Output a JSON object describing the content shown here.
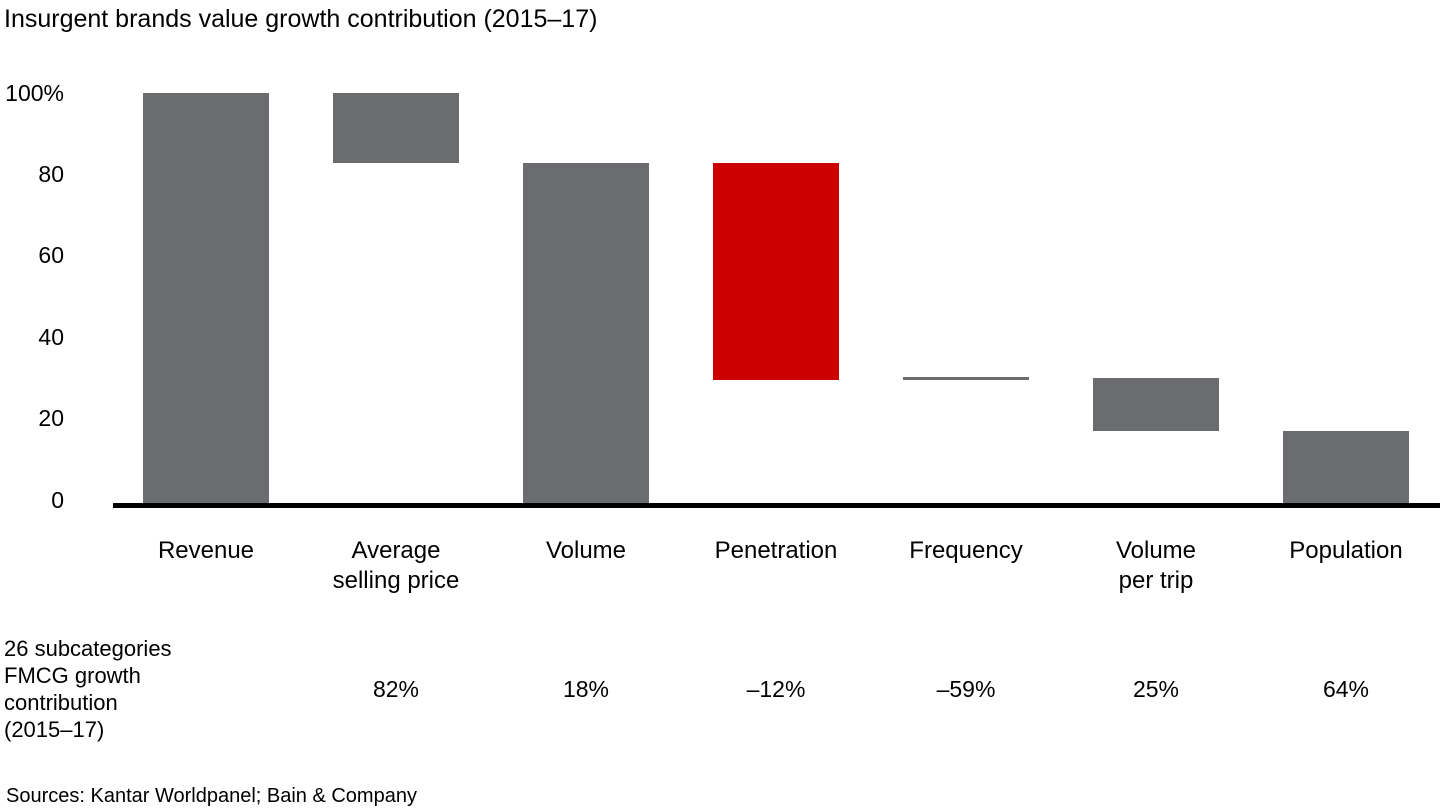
{
  "chart_data": {
    "type": "bar",
    "subtype": "waterfall",
    "title": "Insurgent brands value growth contribution (2015–17)",
    "xlabel": "",
    "ylabel": "",
    "ylim": [
      0,
      100
    ],
    "grid": false,
    "legend": false,
    "y_ticks": [
      "100%",
      "80",
      "60",
      "40",
      "20",
      "0"
    ],
    "categories": [
      "Revenue",
      "Average selling price",
      "Volume",
      "Penetration",
      "Frequency",
      "Volume per trip",
      "Population"
    ],
    "bars": [
      {
        "id": "revenue",
        "label_lines": [
          "Revenue"
        ],
        "start": 0,
        "end": 100,
        "color_key": "gray",
        "subcategory_value": ""
      },
      {
        "id": "average-selling-price",
        "label_lines": [
          "Average",
          "selling price"
        ],
        "start": 83,
        "end": 100,
        "color_key": "gray",
        "subcategory_value": "82%"
      },
      {
        "id": "volume",
        "label_lines": [
          "Volume"
        ],
        "start": 0,
        "end": 83,
        "color_key": "gray",
        "subcategory_value": "18%"
      },
      {
        "id": "penetration",
        "label_lines": [
          "Penetration"
        ],
        "start": 30,
        "end": 83,
        "color_key": "red",
        "subcategory_value": "–12%"
      },
      {
        "id": "frequency",
        "label_lines": [
          "Frequency"
        ],
        "start": 30,
        "end": 30.7,
        "color_key": "gray",
        "subcategory_value": "–59%"
      },
      {
        "id": "volume-per-trip",
        "label_lines": [
          "Volume",
          "per trip"
        ],
        "start": 17.5,
        "end": 30.5,
        "color_key": "gray",
        "subcategory_value": "25%"
      },
      {
        "id": "population",
        "label_lines": [
          "Population"
        ],
        "start": 0,
        "end": 17.5,
        "color_key": "gray",
        "subcategory_value": "64%"
      }
    ],
    "row_header_lines": [
      "26 subcategories",
      "FMCG growth",
      "contribution",
      "(2015–17)"
    ],
    "colors": {
      "gray": "#6b6c70",
      "red": "#cc0000",
      "axis": "#000000"
    }
  },
  "footer": {
    "sources": "Sources: Kantar Worldpanel; Bain & Company"
  }
}
